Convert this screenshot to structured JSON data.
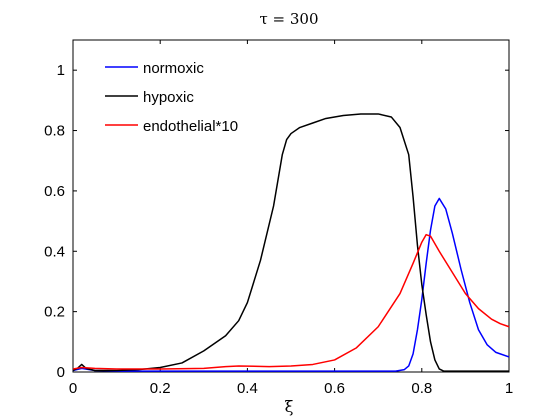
{
  "chart_data": {
    "type": "line",
    "title": "τ = 300",
    "xlabel": "ξ",
    "ylabel": "",
    "xlim": [
      0,
      1
    ],
    "ylim": [
      0,
      1.1
    ],
    "xticks": [
      "0",
      "0.2",
      "0.4",
      "0.6",
      "0.8",
      "1"
    ],
    "yticks": [
      "0",
      "0.2",
      "0.4",
      "0.6",
      "0.8",
      "1"
    ],
    "grid": false,
    "legend_position": "top-left",
    "series": [
      {
        "name": "normoxic",
        "color": "#0000ff",
        "points": [
          [
            0,
            0.005
          ],
          [
            0.02,
            0.012
          ],
          [
            0.05,
            0.005
          ],
          [
            0.1,
            0.003
          ],
          [
            0.3,
            0.003
          ],
          [
            0.5,
            0.003
          ],
          [
            0.7,
            0.003
          ],
          [
            0.74,
            0.003
          ],
          [
            0.76,
            0.008
          ],
          [
            0.77,
            0.02
          ],
          [
            0.78,
            0.06
          ],
          [
            0.79,
            0.14
          ],
          [
            0.8,
            0.24
          ],
          [
            0.81,
            0.36
          ],
          [
            0.82,
            0.47
          ],
          [
            0.83,
            0.55
          ],
          [
            0.84,
            0.575
          ],
          [
            0.855,
            0.54
          ],
          [
            0.87,
            0.46
          ],
          [
            0.89,
            0.34
          ],
          [
            0.91,
            0.23
          ],
          [
            0.93,
            0.14
          ],
          [
            0.95,
            0.09
          ],
          [
            0.97,
            0.065
          ],
          [
            1.0,
            0.05
          ]
        ]
      },
      {
        "name": "hypoxic",
        "color": "#000000",
        "points": [
          [
            0,
            0.005
          ],
          [
            0.01,
            0.012
          ],
          [
            0.02,
            0.025
          ],
          [
            0.03,
            0.012
          ],
          [
            0.05,
            0.005
          ],
          [
            0.1,
            0.005
          ],
          [
            0.15,
            0.008
          ],
          [
            0.2,
            0.015
          ],
          [
            0.25,
            0.03
          ],
          [
            0.3,
            0.07
          ],
          [
            0.35,
            0.12
          ],
          [
            0.38,
            0.17
          ],
          [
            0.4,
            0.23
          ],
          [
            0.43,
            0.37
          ],
          [
            0.46,
            0.55
          ],
          [
            0.48,
            0.72
          ],
          [
            0.49,
            0.77
          ],
          [
            0.5,
            0.79
          ],
          [
            0.52,
            0.81
          ],
          [
            0.55,
            0.825
          ],
          [
            0.58,
            0.84
          ],
          [
            0.62,
            0.85
          ],
          [
            0.66,
            0.855
          ],
          [
            0.7,
            0.855
          ],
          [
            0.73,
            0.845
          ],
          [
            0.75,
            0.81
          ],
          [
            0.77,
            0.72
          ],
          [
            0.78,
            0.58
          ],
          [
            0.79,
            0.42
          ],
          [
            0.8,
            0.29
          ],
          [
            0.81,
            0.19
          ],
          [
            0.82,
            0.1
          ],
          [
            0.83,
            0.04
          ],
          [
            0.84,
            0.01
          ],
          [
            0.85,
            0.003
          ],
          [
            0.9,
            0.003
          ],
          [
            1.0,
            0.003
          ]
        ]
      },
      {
        "name": "endothelial*10",
        "color": "#ff0000",
        "points": [
          [
            0,
            0.01
          ],
          [
            0.02,
            0.015
          ],
          [
            0.05,
            0.012
          ],
          [
            0.1,
            0.01
          ],
          [
            0.2,
            0.01
          ],
          [
            0.3,
            0.012
          ],
          [
            0.35,
            0.018
          ],
          [
            0.38,
            0.02
          ],
          [
            0.45,
            0.018
          ],
          [
            0.5,
            0.02
          ],
          [
            0.55,
            0.025
          ],
          [
            0.6,
            0.04
          ],
          [
            0.65,
            0.08
          ],
          [
            0.7,
            0.15
          ],
          [
            0.75,
            0.26
          ],
          [
            0.78,
            0.36
          ],
          [
            0.8,
            0.43
          ],
          [
            0.81,
            0.455
          ],
          [
            0.82,
            0.45
          ],
          [
            0.84,
            0.4
          ],
          [
            0.87,
            0.33
          ],
          [
            0.9,
            0.26
          ],
          [
            0.93,
            0.21
          ],
          [
            0.96,
            0.175
          ],
          [
            0.98,
            0.16
          ],
          [
            1.0,
            0.15
          ]
        ]
      }
    ]
  }
}
